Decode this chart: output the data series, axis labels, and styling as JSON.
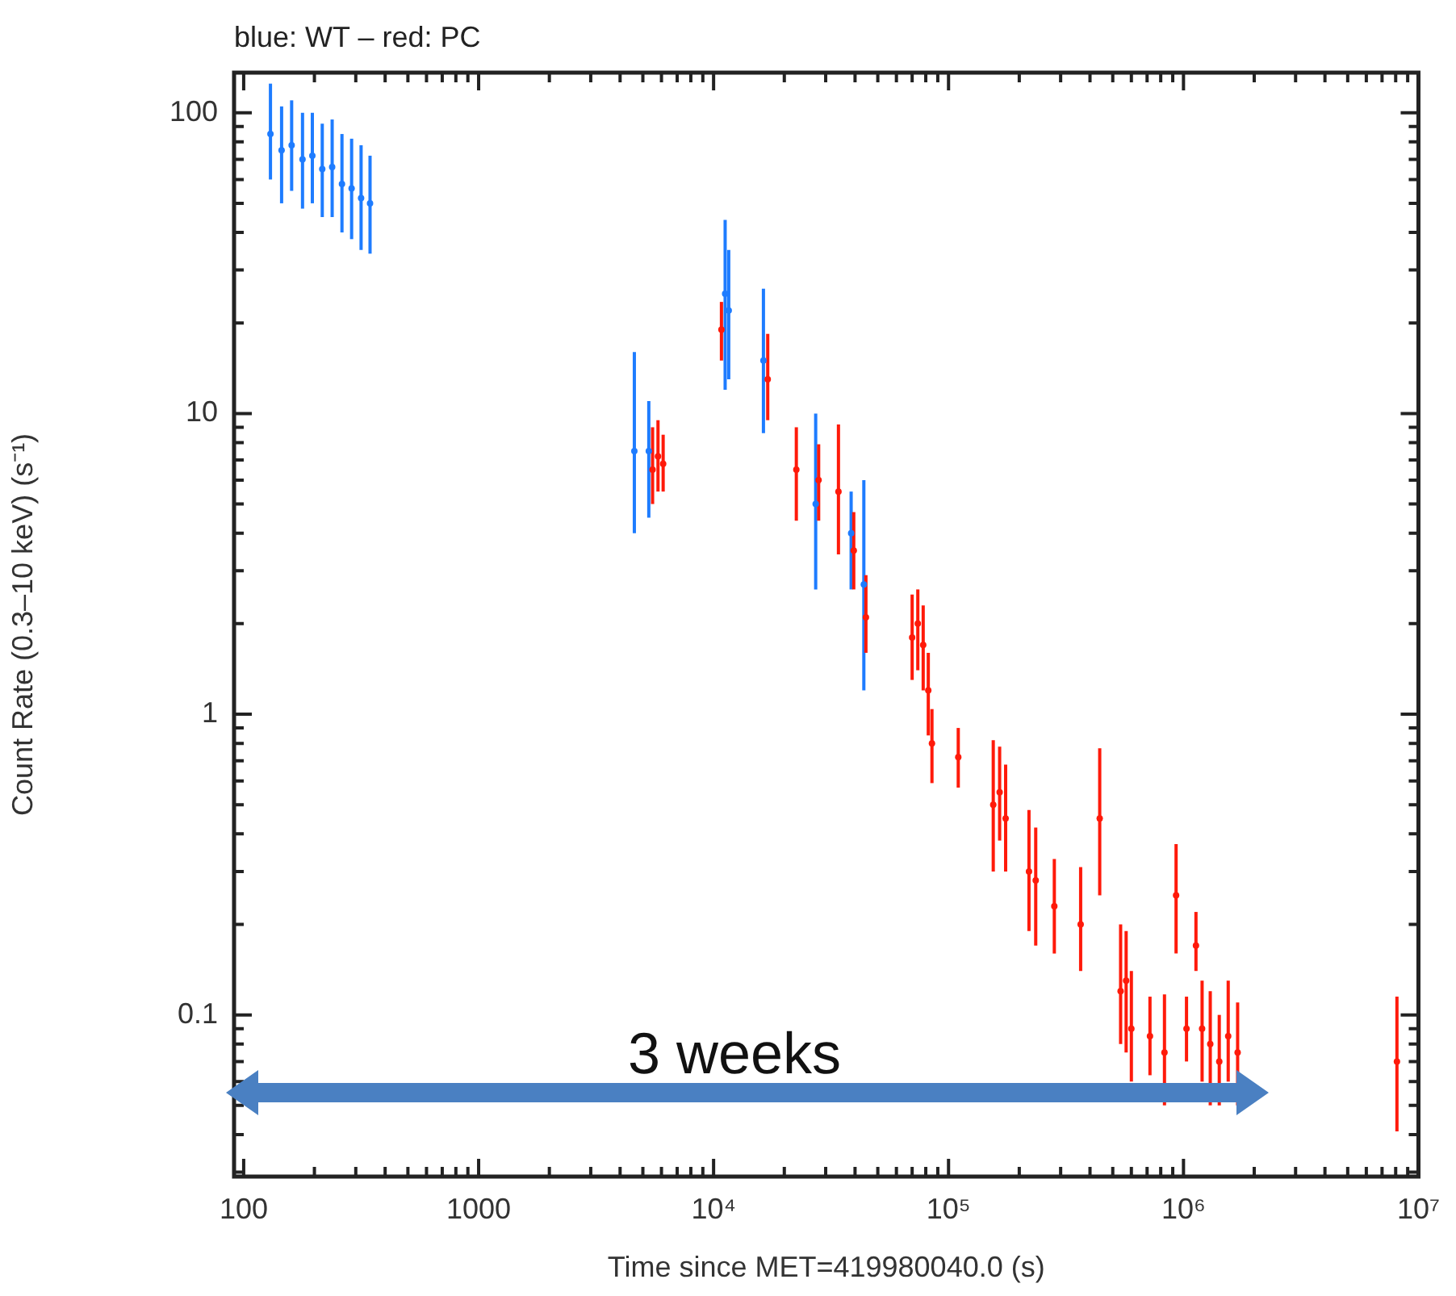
{
  "chart_data": {
    "type": "scatter",
    "title": "blue: WT – red: PC",
    "xlabel": "Time since MET=419980040.0 (s)",
    "ylabel": "Count Rate (0.3–10 keV) (s⁻¹)",
    "annotations": [
      "3 weeks"
    ],
    "log": "xy",
    "grid": false,
    "legend": false,
    "marker": "circle",
    "xlim": [
      91,
      10000000
    ],
    "ylim": [
      0.029,
      136
    ],
    "xticks": [
      100,
      {
        "value": 200,
        "label": null
      },
      {
        "value": 300,
        "label": null
      },
      {
        "value": 400,
        "label": null
      },
      {
        "value": 500,
        "label": null
      },
      {
        "value": 600,
        "label": null
      },
      {
        "value": 700,
        "label": null
      },
      {
        "value": 800,
        "label": null
      },
      {
        "value": 900,
        "label": null
      },
      1000,
      {
        "value": 2000,
        "label": null
      },
      {
        "value": 3000,
        "label": null
      },
      {
        "value": 4000,
        "label": null
      },
      {
        "value": 5000,
        "label": null
      },
      {
        "value": 6000,
        "label": null
      },
      {
        "value": 7000,
        "label": null
      },
      {
        "value": 8000,
        "label": null
      },
      {
        "value": 9000,
        "label": null
      },
      {
        "value": 10000,
        "label": "10⁴"
      },
      {
        "value": 20000,
        "label": null
      },
      {
        "value": 30000,
        "label": null
      },
      {
        "value": 40000,
        "label": null
      },
      {
        "value": 50000,
        "label": null
      },
      {
        "value": 60000,
        "label": null
      },
      {
        "value": 70000,
        "label": null
      },
      {
        "value": 80000,
        "label": null
      },
      {
        "value": 90000,
        "label": null
      },
      {
        "value": 100000,
        "label": "10⁵"
      },
      {
        "value": 200000,
        "label": null
      },
      {
        "value": 300000,
        "label": null
      },
      {
        "value": 400000,
        "label": null
      },
      {
        "value": 500000,
        "label": null
      },
      {
        "value": 600000,
        "label": null
      },
      {
        "value": 700000,
        "label": null
      },
      {
        "value": 800000,
        "label": null
      },
      {
        "value": 900000,
        "label": null
      },
      {
        "value": 1000000,
        "label": "10⁶"
      },
      {
        "value": 2000000,
        "label": null
      },
      {
        "value": 3000000,
        "label": null
      },
      {
        "value": 4000000,
        "label": null
      },
      {
        "value": 5000000,
        "label": null
      },
      {
        "value": 6000000,
        "label": null
      },
      {
        "value": 7000000,
        "label": null
      },
      {
        "value": 8000000,
        "label": null
      },
      {
        "value": 9000000,
        "label": null
      },
      {
        "value": 10000000,
        "label": "10⁷"
      }
    ],
    "yticks": [
      {
        "value": 0.03,
        "label": null
      },
      {
        "value": 0.04,
        "label": null
      },
      {
        "value": 0.05,
        "label": null
      },
      {
        "value": 0.06,
        "label": null
      },
      {
        "value": 0.07,
        "label": null
      },
      {
        "value": 0.08,
        "label": null
      },
      {
        "value": 0.09,
        "label": null
      },
      0.1,
      {
        "value": 0.2,
        "label": null
      },
      {
        "value": 0.3,
        "label": null
      },
      {
        "value": 0.4,
        "label": null
      },
      {
        "value": 0.5,
        "label": null
      },
      {
        "value": 0.6,
        "label": null
      },
      {
        "value": 0.7,
        "label": null
      },
      {
        "value": 0.8,
        "label": null
      },
      {
        "value": 0.9,
        "label": null
      },
      1,
      {
        "value": 2,
        "label": null
      },
      {
        "value": 3,
        "label": null
      },
      {
        "value": 4,
        "label": null
      },
      {
        "value": 5,
        "label": null
      },
      {
        "value": 6,
        "label": null
      },
      {
        "value": 7,
        "label": null
      },
      {
        "value": 8,
        "label": null
      },
      {
        "value": 9,
        "label": null
      },
      10,
      {
        "value": 20,
        "label": null
      },
      {
        "value": 30,
        "label": null
      },
      {
        "value": 40,
        "label": null
      },
      {
        "value": 50,
        "label": null
      },
      {
        "value": 60,
        "label": null
      },
      {
        "value": 70,
        "label": null
      },
      {
        "value": 80,
        "label": null
      },
      {
        "value": 90,
        "label": null
      },
      100
    ],
    "series": [
      {
        "color": "#1e7cff",
        "x": [
          130,
          145,
          160,
          178,
          196,
          216,
          238,
          262,
          288,
          316,
          345,
          4600,
          5300,
          11200,
          11600,
          16300,
          27200,
          38500,
          43600
        ],
        "values": [
          85,
          75,
          78,
          70,
          72,
          65,
          66,
          58,
          56,
          52,
          50,
          7.5,
          7.5,
          25,
          22,
          15,
          5,
          4,
          2.7
        ],
        "errors": [
          [
            60,
            125
          ],
          [
            50,
            105
          ],
          [
            55,
            110
          ],
          [
            48,
            100
          ],
          [
            50,
            100
          ],
          [
            45,
            92
          ],
          [
            45,
            95
          ],
          [
            40,
            85
          ],
          [
            38,
            82
          ],
          [
            35,
            78
          ],
          [
            34,
            72
          ],
          [
            4,
            16
          ],
          [
            4.5,
            11
          ],
          [
            12,
            44
          ],
          [
            13,
            35
          ],
          [
            8.6,
            26
          ],
          [
            2.6,
            10
          ],
          [
            2.6,
            5.5
          ],
          [
            1.2,
            6
          ]
        ]
      },
      {
        "color": "#ff1a0a",
        "x": [
          5500,
          5800,
          6100,
          10800,
          17000,
          22500,
          28000,
          34000,
          39500,
          44500,
          70000,
          74000,
          78000,
          82000,
          85000,
          110000,
          155000,
          165000,
          175000,
          220000,
          235000,
          282000,
          365000,
          440000,
          540000,
          570000,
          600000,
          720000,
          830000,
          930000,
          1030000,
          1130000,
          1200000,
          1300000,
          1420000,
          1550000,
          1700000,
          8100000
        ],
        "values": [
          6.5,
          7.2,
          6.8,
          19,
          13,
          6.5,
          6,
          5.5,
          3.5,
          2.1,
          1.8,
          2,
          1.7,
          1.2,
          0.8,
          0.72,
          0.5,
          0.55,
          0.45,
          0.3,
          0.28,
          0.23,
          0.2,
          0.45,
          0.12,
          0.13,
          0.09,
          0.085,
          0.075,
          0.25,
          0.09,
          0.17,
          0.09,
          0.08,
          0.07,
          0.085,
          0.075,
          0.07
        ],
        "errors": [
          [
            5,
            9
          ],
          [
            5.5,
            9.5
          ],
          [
            5.5,
            8.5
          ],
          [
            15,
            23.5
          ],
          [
            9.5,
            18.4
          ],
          [
            4.4,
            9
          ],
          [
            4.4,
            7.9
          ],
          [
            3.4,
            9.2
          ],
          [
            2.6,
            4.7
          ],
          [
            1.6,
            2.9
          ],
          [
            1.3,
            2.5
          ],
          [
            1.4,
            2.6
          ],
          [
            1.2,
            2.3
          ],
          [
            0.85,
            1.6
          ],
          [
            0.59,
            1.04
          ],
          [
            0.57,
            0.9
          ],
          [
            0.3,
            0.82
          ],
          [
            0.38,
            0.78
          ],
          [
            0.3,
            0.68
          ],
          [
            0.19,
            0.48
          ],
          [
            0.17,
            0.42
          ],
          [
            0.16,
            0.33
          ],
          [
            0.14,
            0.31
          ],
          [
            0.25,
            0.77
          ],
          [
            0.08,
            0.2
          ],
          [
            0.075,
            0.19
          ],
          [
            0.06,
            0.14
          ],
          [
            0.063,
            0.115
          ],
          [
            0.05,
            0.117
          ],
          [
            0.16,
            0.37
          ],
          [
            0.07,
            0.115
          ],
          [
            0.14,
            0.22
          ],
          [
            0.06,
            0.13
          ],
          [
            0.05,
            0.12
          ],
          [
            0.05,
            0.1
          ],
          [
            0.06,
            0.13
          ],
          [
            0.05,
            0.11
          ],
          [
            0.041,
            0.115
          ]
        ]
      }
    ]
  }
}
